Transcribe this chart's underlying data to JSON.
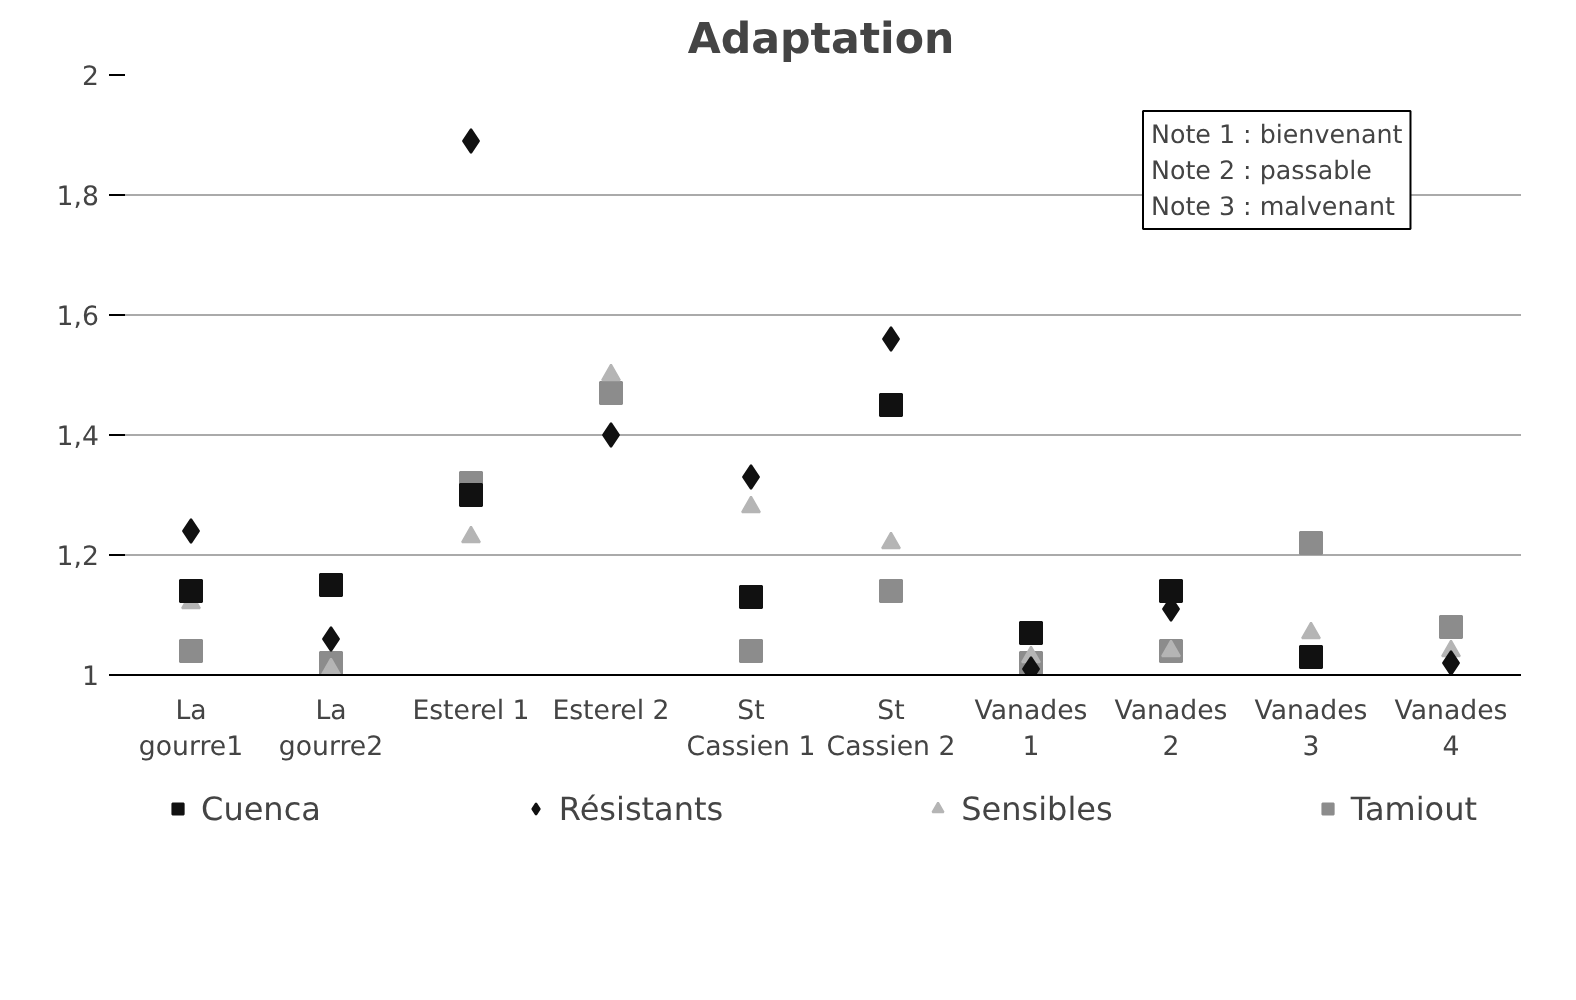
{
  "chart_data": {
    "type": "scatter",
    "title": "Adaptation",
    "categories": [
      "La\ngourre1",
      "La\ngourre2",
      "Esterel 1",
      "Esterel 2",
      "St\nCassien 1",
      "St\nCassien 2",
      "Vanades\n1",
      "Vanades\n2",
      "Vanades\n3",
      "Vanades\n4"
    ],
    "series": [
      {
        "name": "Cuenca",
        "color": "#111111",
        "marker": "square",
        "values": [
          1.14,
          1.15,
          1.3,
          null,
          1.13,
          1.45,
          1.07,
          1.14,
          1.03,
          null
        ]
      },
      {
        "name": "Résistants",
        "color": "#111111",
        "marker": "diamond",
        "values": [
          1.24,
          1.06,
          1.89,
          1.4,
          1.33,
          1.56,
          1.01,
          1.11,
          null,
          1.02
        ]
      },
      {
        "name": "Sensibles",
        "color": "#b5b5b5",
        "marker": "triangle",
        "values": [
          1.12,
          1.01,
          1.23,
          1.5,
          1.28,
          1.22,
          1.03,
          1.04,
          1.07,
          1.04
        ]
      },
      {
        "name": "Tamiout",
        "color": "#8c8c8c",
        "marker": "square",
        "values": [
          1.04,
          1.02,
          1.32,
          1.47,
          1.04,
          1.14,
          1.02,
          1.04,
          1.22,
          1.08
        ]
      }
    ],
    "ylim": [
      1,
      2
    ],
    "yticks": [
      {
        "value": 1,
        "label": "1"
      },
      {
        "value": 1.2,
        "label": "1,2"
      },
      {
        "value": 1.4,
        "label": "1,4"
      },
      {
        "value": 1.6,
        "label": "1,6"
      },
      {
        "value": 1.8,
        "label": "1,8"
      },
      {
        "value": 2,
        "label": "2"
      }
    ],
    "grid": "y",
    "legend": "bottom",
    "annotations": [
      "Note 1 : bienvenant\nNote 2 : passable\nNote 3 : malvenant"
    ]
  }
}
